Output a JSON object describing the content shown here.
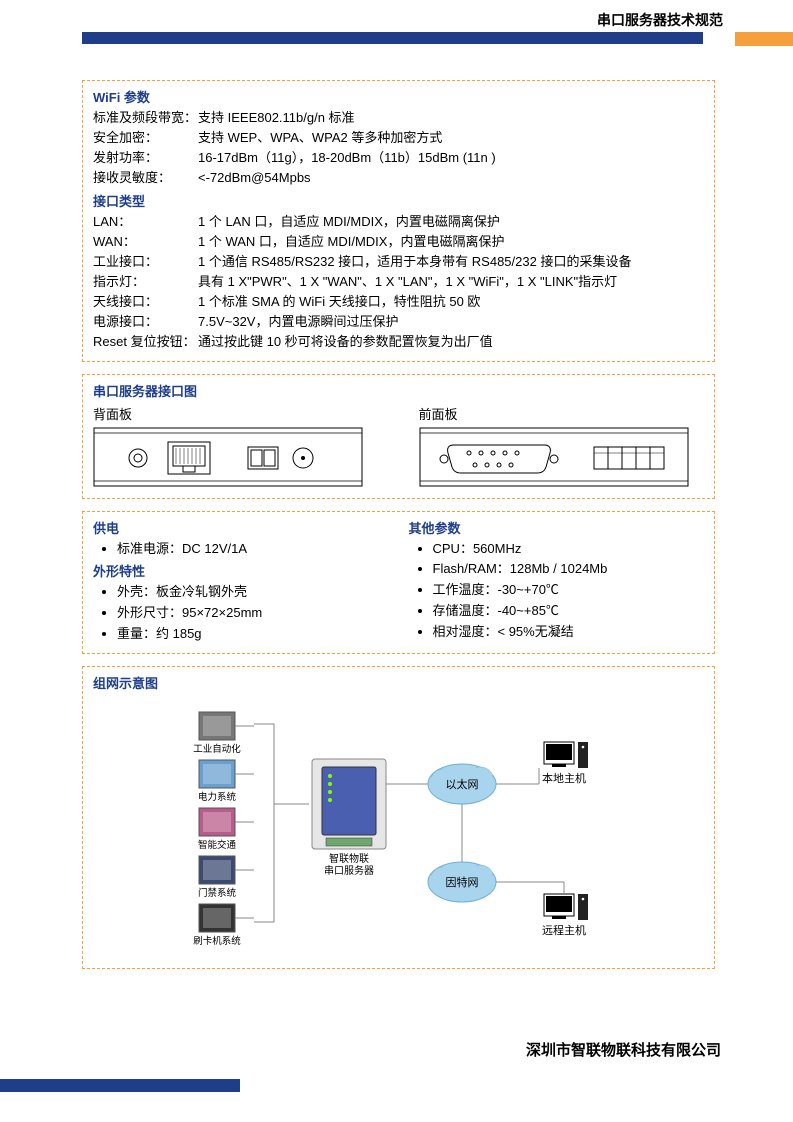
{
  "header": {
    "title": "串口服务器技术规范"
  },
  "wifi": {
    "heading": "WiFi 参数",
    "rows": [
      {
        "label": "标准及频段带宽：",
        "value": "支持 IEEE802.11b/g/n 标准"
      },
      {
        "label": "安全加密：",
        "value": "支持 WEP、WPA、WPA2 等多种加密方式"
      },
      {
        "label": "发射功率：",
        "value": "16-17dBm（11g），18-20dBm（11b）15dBm (11n )"
      },
      {
        "label": "接收灵敏度：",
        "value": "<-72dBm@54Mpbs"
      }
    ]
  },
  "interface": {
    "heading": "接口类型",
    "rows": [
      {
        "label": "LAN：",
        "value": "1 个 LAN 口，自适应 MDI/MDIX，内置电磁隔离保护"
      },
      {
        "label": "WAN：",
        "value": "1 个 WAN 口，自适应 MDI/MDIX，内置电磁隔离保护"
      },
      {
        "label": "工业接口：",
        "value": "1 个通信 RS485/RS232 接口，适用于本身带有 RS485/232 接口的采集设备"
      },
      {
        "label": "指示灯：",
        "value": "具有 1 X\"PWR\"、1 X \"WAN\"、1 X \"LAN\"，1 X \"WiFi\"，1 X \"LINK\"指示灯"
      },
      {
        "label": "天线接口：",
        "value": "1 个标准 SMA 的 WiFi 天线接口，特性阻抗 50 欧"
      },
      {
        "label": "电源接口：",
        "value": "7.5V~32V，内置电源瞬间过压保护"
      },
      {
        "label": "Reset 复位按钮：",
        "value": "通过按此键 10 秒可将设备的参数配置恢复为出厂值"
      }
    ]
  },
  "portDiagram": {
    "heading": "串口服务器接口图",
    "backLabel": "背面板",
    "frontLabel": "前面板"
  },
  "power": {
    "heading": "供电",
    "items": [
      "标准电源：DC 12V/1A"
    ]
  },
  "shape": {
    "heading": "外形特性",
    "items": [
      "外壳：板金冷轧钢外壳",
      "外形尺寸：95×72×25mm",
      "重量：约 185g"
    ]
  },
  "other": {
    "heading": "其他参数",
    "items": [
      "CPU：560MHz",
      "Flash/RAM：128Mb / 1024Mb",
      "工作温度：-30~+70℃",
      "存储温度：-40~+85℃",
      "相对湿度：< 95%无凝结"
    ]
  },
  "network": {
    "heading": "组网示意图",
    "leftNodes": [
      "工业自动化",
      "电力系统",
      "智能交通",
      "门禁系统",
      "刷卡机系统"
    ],
    "centerLabel": "智联物联\n串口服务器",
    "cloud1": "以太网",
    "cloud2": "因特网",
    "host1": "本地主机",
    "host2": "远程主机"
  },
  "footer": {
    "company": "深圳市智联物联科技有限公司"
  },
  "colors": {
    "blue": "#1f3e8a",
    "orange": "#f5a03c",
    "cloudBlue": "#8fc8e8",
    "deviceBlue": "#4a5fb0"
  }
}
